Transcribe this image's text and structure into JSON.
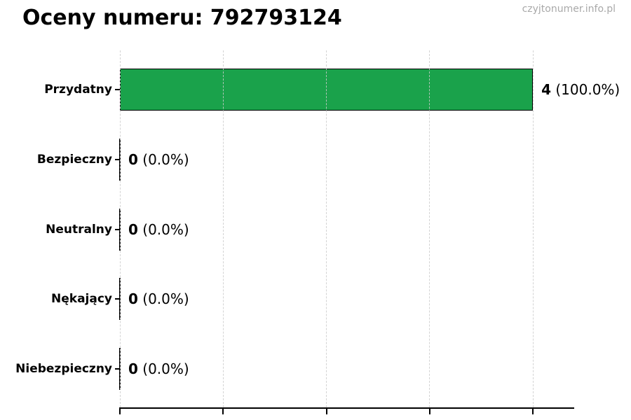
{
  "header": {
    "title": "Oceny numeru: 792793124",
    "watermark": "czyjtonumer.info.pl"
  },
  "chart_data": {
    "type": "bar",
    "orientation": "horizontal",
    "title": "Oceny numeru: 792793124",
    "categories": [
      "Przydatny",
      "Bezpieczny",
      "Neutralny",
      "Nękający",
      "Niebezpieczny"
    ],
    "values": [
      4,
      0,
      0,
      0,
      0
    ],
    "percentages": [
      100.0,
      0.0,
      0.0,
      0.0,
      0.0
    ],
    "count_labels": [
      "4",
      "0",
      "0",
      "0",
      "0"
    ],
    "pct_labels": [
      "(100.0%)",
      "(0.0%)",
      "(0.0%)",
      "(0.0%)",
      "(0.0%)"
    ],
    "xlabel": "",
    "ylabel": "",
    "xlim": [
      0,
      4.4
    ],
    "x_ticks": [
      0,
      1,
      2,
      3,
      4
    ],
    "grid": "vertical-dashed",
    "legend": "none",
    "colors": {
      "bar_fill": "#1aa24b",
      "bar_edge": "#000000",
      "gridline": "#cccccc",
      "axis": "#000000",
      "watermark_text": "#a9a9a9"
    }
  }
}
